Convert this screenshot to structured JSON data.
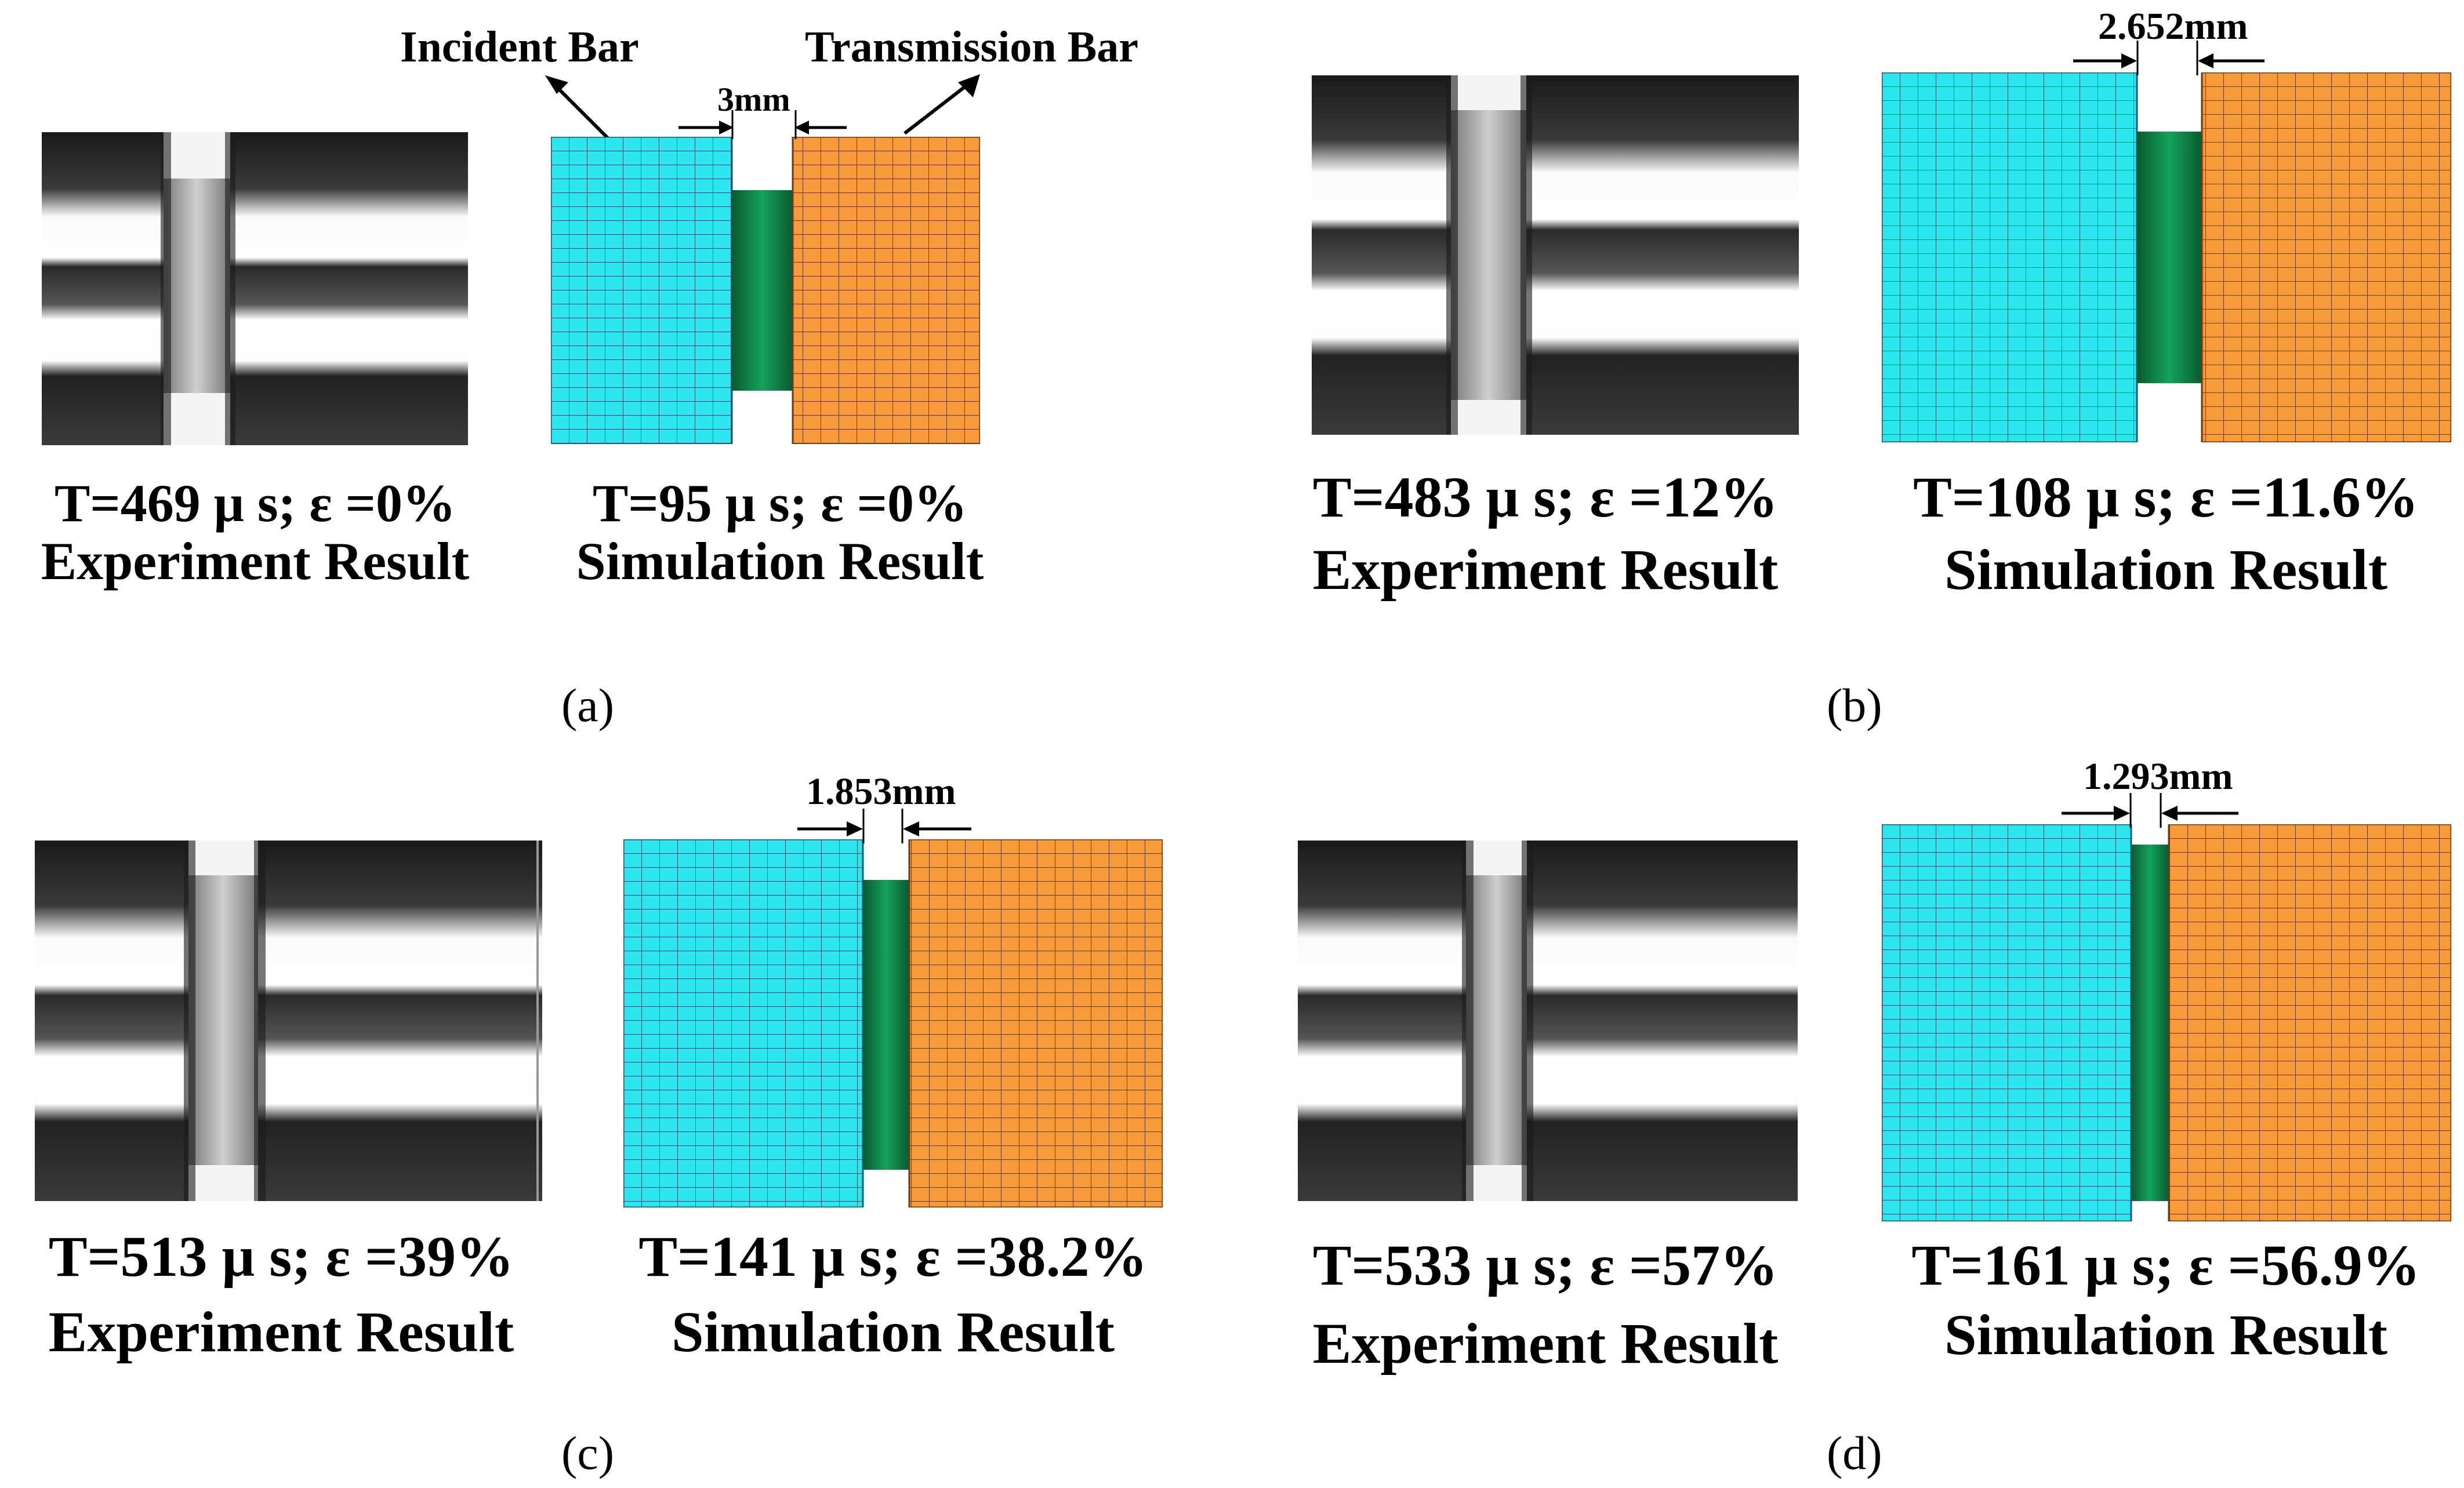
{
  "figure": {
    "annotations": {
      "incident_bar": "Incident Bar",
      "transmission_bar": "Transmission Bar"
    },
    "panels": [
      {
        "id": "a",
        "label": "(a)",
        "gap": "3mm",
        "experiment": {
          "line1": "T=469 μ s; ε =0%",
          "line2": "Experiment Result"
        },
        "simulation": {
          "line1": "T=95 μ s; ε =0%",
          "line2": "Simulation Result"
        }
      },
      {
        "id": "b",
        "label": "(b)",
        "gap": "2.652mm",
        "experiment": {
          "line1": "T=483 μ s; ε =12%",
          "line2": "Experiment Result"
        },
        "simulation": {
          "line1": "T=108 μ s; ε =11.6%",
          "line2": "Simulation Result"
        }
      },
      {
        "id": "c",
        "label": "(c)",
        "gap": "1.853mm",
        "experiment": {
          "line1": "T=513 μ s; ε =39%",
          "line2": "Experiment Result"
        },
        "simulation": {
          "line1": "T=141 μ s; ε =38.2%",
          "line2": "Simulation Result"
        }
      },
      {
        "id": "d",
        "label": "(d)",
        "gap": "1.293mm",
        "experiment": {
          "line1": "T=533 μ s; ε =57%",
          "line2": "Experiment Result"
        },
        "simulation": {
          "line1": "T=161 μ s; ε =56.9%",
          "line2": "Simulation Result"
        }
      }
    ],
    "colors": {
      "incident_bar": "#2ee6f0",
      "transmission_bar": "#f79a3a",
      "specimen": "#0f7d45",
      "mesh_line": "#1a1a1a"
    }
  }
}
